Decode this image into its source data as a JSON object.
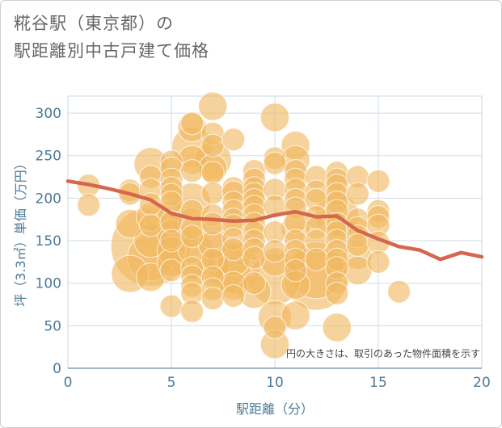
{
  "title_line1": "糀谷駅（東京都）の",
  "title_line2": "駅距離別中古戸建て価格",
  "chart_data": {
    "type": "scatter",
    "xlabel": "駅距離（分）",
    "ylabel": "坪（3.3㎡）単価（万円）",
    "xlim": [
      0,
      20
    ],
    "ylim": [
      0,
      320
    ],
    "xticks": [
      0,
      5,
      10,
      15,
      20
    ],
    "yticks": [
      0,
      50,
      100,
      150,
      200,
      250,
      300
    ],
    "grid": true,
    "annotation": "円の大きさは、取引のあった物件面積を示す",
    "colors": {
      "bubble": "#f0b860",
      "line": "#d4674e",
      "grid": "#cfdde8",
      "axis": "#4d7a98"
    },
    "bubbles": [
      {
        "x": 1,
        "y": 215,
        "s": 2
      },
      {
        "x": 1,
        "y": 192,
        "s": 2
      },
      {
        "x": 3,
        "y": 209,
        "s": 2
      },
      {
        "x": 3,
        "y": 205,
        "s": 2
      },
      {
        "x": 3,
        "y": 170,
        "s": 3
      },
      {
        "x": 3,
        "y": 111,
        "s": 5
      },
      {
        "x": 4,
        "y": 240,
        "s": 4
      },
      {
        "x": 4,
        "y": 225,
        "s": 2
      },
      {
        "x": 4,
        "y": 210,
        "s": 2
      },
      {
        "x": 4,
        "y": 193,
        "s": 2
      },
      {
        "x": 4,
        "y": 178,
        "s": 3
      },
      {
        "x": 4,
        "y": 168,
        "s": 2
      },
      {
        "x": 4,
        "y": 150,
        "s": 4
      },
      {
        "x": 4,
        "y": 143,
        "s": 25
      },
      {
        "x": 4,
        "y": 130,
        "s": 8
      },
      {
        "x": 4,
        "y": 107,
        "s": 3
      },
      {
        "x": 5,
        "y": 243,
        "s": 2
      },
      {
        "x": 5,
        "y": 235,
        "s": 2
      },
      {
        "x": 5,
        "y": 222,
        "s": 2
      },
      {
        "x": 5,
        "y": 212,
        "s": 2
      },
      {
        "x": 5,
        "y": 204,
        "s": 2
      },
      {
        "x": 5,
        "y": 195,
        "s": 2
      },
      {
        "x": 5,
        "y": 180,
        "s": 3
      },
      {
        "x": 5,
        "y": 172,
        "s": 2
      },
      {
        "x": 5,
        "y": 158,
        "s": 3
      },
      {
        "x": 5,
        "y": 150,
        "s": 2
      },
      {
        "x": 5,
        "y": 138,
        "s": 3
      },
      {
        "x": 5,
        "y": 124,
        "s": 3
      },
      {
        "x": 5,
        "y": 115,
        "s": 2
      },
      {
        "x": 5,
        "y": 73,
        "s": 2
      },
      {
        "x": 6,
        "y": 288,
        "s": 2
      },
      {
        "x": 6,
        "y": 283,
        "s": 3
      },
      {
        "x": 6,
        "y": 260,
        "s": 6
      },
      {
        "x": 6,
        "y": 245,
        "s": 3
      },
      {
        "x": 6,
        "y": 232,
        "s": 2
      },
      {
        "x": 6,
        "y": 196,
        "s": 5
      },
      {
        "x": 6,
        "y": 185,
        "s": 2
      },
      {
        "x": 6,
        "y": 172,
        "s": 3
      },
      {
        "x": 6,
        "y": 165,
        "s": 2
      },
      {
        "x": 6,
        "y": 155,
        "s": 2
      },
      {
        "x": 6,
        "y": 140,
        "s": 3
      },
      {
        "x": 6,
        "y": 133,
        "s": 8
      },
      {
        "x": 6,
        "y": 118,
        "s": 2
      },
      {
        "x": 6,
        "y": 108,
        "s": 2
      },
      {
        "x": 6,
        "y": 97,
        "s": 2
      },
      {
        "x": 6,
        "y": 88,
        "s": 2
      },
      {
        "x": 6,
        "y": 67,
        "s": 2
      },
      {
        "x": 7,
        "y": 308,
        "s": 3
      },
      {
        "x": 7,
        "y": 276,
        "s": 2
      },
      {
        "x": 7,
        "y": 262,
        "s": 2
      },
      {
        "x": 7,
        "y": 245,
        "s": 5
      },
      {
        "x": 7,
        "y": 235,
        "s": 3
      },
      {
        "x": 7,
        "y": 230,
        "s": 2
      },
      {
        "x": 7,
        "y": 206,
        "s": 2
      },
      {
        "x": 7,
        "y": 180,
        "s": 2
      },
      {
        "x": 7,
        "y": 170,
        "s": 2
      },
      {
        "x": 7,
        "y": 157,
        "s": 3
      },
      {
        "x": 7,
        "y": 145,
        "s": 3
      },
      {
        "x": 7,
        "y": 128,
        "s": 2
      },
      {
        "x": 7,
        "y": 120,
        "s": 4
      },
      {
        "x": 7,
        "y": 107,
        "s": 2
      },
      {
        "x": 7,
        "y": 93,
        "s": 2
      },
      {
        "x": 7,
        "y": 82,
        "s": 2
      },
      {
        "x": 8,
        "y": 269,
        "s": 2
      },
      {
        "x": 8,
        "y": 212,
        "s": 2
      },
      {
        "x": 8,
        "y": 207,
        "s": 2
      },
      {
        "x": 8,
        "y": 195,
        "s": 2
      },
      {
        "x": 8,
        "y": 185,
        "s": 2
      },
      {
        "x": 8,
        "y": 175,
        "s": 2
      },
      {
        "x": 8,
        "y": 168,
        "s": 2
      },
      {
        "x": 8,
        "y": 152,
        "s": 2
      },
      {
        "x": 8,
        "y": 140,
        "s": 2
      },
      {
        "x": 8,
        "y": 128,
        "s": 4
      },
      {
        "x": 8,
        "y": 118,
        "s": 10
      },
      {
        "x": 8,
        "y": 110,
        "s": 5
      },
      {
        "x": 8,
        "y": 97,
        "s": 3
      },
      {
        "x": 8,
        "y": 85,
        "s": 2
      },
      {
        "x": 9,
        "y": 232,
        "s": 2
      },
      {
        "x": 9,
        "y": 222,
        "s": 2
      },
      {
        "x": 9,
        "y": 212,
        "s": 2
      },
      {
        "x": 9,
        "y": 205,
        "s": 2
      },
      {
        "x": 9,
        "y": 198,
        "s": 2
      },
      {
        "x": 9,
        "y": 190,
        "s": 2
      },
      {
        "x": 9,
        "y": 180,
        "s": 2
      },
      {
        "x": 9,
        "y": 170,
        "s": 2
      },
      {
        "x": 9,
        "y": 160,
        "s": 2
      },
      {
        "x": 9,
        "y": 150,
        "s": 2
      },
      {
        "x": 9,
        "y": 140,
        "s": 2
      },
      {
        "x": 9,
        "y": 130,
        "s": 2
      },
      {
        "x": 9,
        "y": 100,
        "s": 2
      },
      {
        "x": 9,
        "y": 90,
        "s": 4
      },
      {
        "x": 10,
        "y": 295,
        "s": 3
      },
      {
        "x": 10,
        "y": 247,
        "s": 2
      },
      {
        "x": 10,
        "y": 241,
        "s": 2
      },
      {
        "x": 10,
        "y": 210,
        "s": 2
      },
      {
        "x": 10,
        "y": 190,
        "s": 2
      },
      {
        "x": 10,
        "y": 160,
        "s": 2
      },
      {
        "x": 10,
        "y": 138,
        "s": 2
      },
      {
        "x": 10,
        "y": 125,
        "s": 3
      },
      {
        "x": 10,
        "y": 105,
        "s": 10
      },
      {
        "x": 10,
        "y": 60,
        "s": 4
      },
      {
        "x": 10,
        "y": 48,
        "s": 2
      },
      {
        "x": 10,
        "y": 28,
        "s": 3
      },
      {
        "x": 11,
        "y": 262,
        "s": 3
      },
      {
        "x": 11,
        "y": 245,
        "s": 3
      },
      {
        "x": 11,
        "y": 232,
        "s": 2
      },
      {
        "x": 11,
        "y": 222,
        "s": 2
      },
      {
        "x": 11,
        "y": 210,
        "s": 2
      },
      {
        "x": 11,
        "y": 198,
        "s": 2
      },
      {
        "x": 11,
        "y": 188,
        "s": 2
      },
      {
        "x": 11,
        "y": 172,
        "s": 2
      },
      {
        "x": 11,
        "y": 165,
        "s": 3
      },
      {
        "x": 11,
        "y": 150,
        "s": 2
      },
      {
        "x": 11,
        "y": 138,
        "s": 2
      },
      {
        "x": 11,
        "y": 128,
        "s": 2
      },
      {
        "x": 11,
        "y": 115,
        "s": 2
      },
      {
        "x": 11,
        "y": 98,
        "s": 3
      },
      {
        "x": 11,
        "y": 62,
        "s": 3
      },
      {
        "x": 12,
        "y": 225,
        "s": 2
      },
      {
        "x": 12,
        "y": 208,
        "s": 2
      },
      {
        "x": 12,
        "y": 198,
        "s": 2
      },
      {
        "x": 12,
        "y": 178,
        "s": 2
      },
      {
        "x": 12,
        "y": 165,
        "s": 2
      },
      {
        "x": 12,
        "y": 150,
        "s": 2
      },
      {
        "x": 12,
        "y": 128,
        "s": 2
      },
      {
        "x": 12,
        "y": 115,
        "s": 12
      },
      {
        "x": 12,
        "y": 105,
        "s": 15
      },
      {
        "x": 13,
        "y": 230,
        "s": 2
      },
      {
        "x": 13,
        "y": 222,
        "s": 2
      },
      {
        "x": 13,
        "y": 215,
        "s": 2
      },
      {
        "x": 13,
        "y": 205,
        "s": 2
      },
      {
        "x": 13,
        "y": 195,
        "s": 2
      },
      {
        "x": 13,
        "y": 185,
        "s": 2
      },
      {
        "x": 13,
        "y": 180,
        "s": 7
      },
      {
        "x": 13,
        "y": 170,
        "s": 2
      },
      {
        "x": 13,
        "y": 160,
        "s": 2
      },
      {
        "x": 13,
        "y": 150,
        "s": 2
      },
      {
        "x": 13,
        "y": 138,
        "s": 2
      },
      {
        "x": 13,
        "y": 128,
        "s": 2
      },
      {
        "x": 13,
        "y": 118,
        "s": 2
      },
      {
        "x": 13,
        "y": 100,
        "s": 2
      },
      {
        "x": 13,
        "y": 88,
        "s": 2
      },
      {
        "x": 13,
        "y": 48,
        "s": 3
      },
      {
        "x": 14,
        "y": 225,
        "s": 2
      },
      {
        "x": 14,
        "y": 205,
        "s": 2
      },
      {
        "x": 14,
        "y": 175,
        "s": 2
      },
      {
        "x": 14,
        "y": 165,
        "s": 2
      },
      {
        "x": 14,
        "y": 155,
        "s": 2
      },
      {
        "x": 14,
        "y": 145,
        "s": 2
      },
      {
        "x": 14,
        "y": 133,
        "s": 3
      },
      {
        "x": 14,
        "y": 115,
        "s": 3
      },
      {
        "x": 15,
        "y": 220,
        "s": 2
      },
      {
        "x": 15,
        "y": 185,
        "s": 2
      },
      {
        "x": 15,
        "y": 178,
        "s": 2
      },
      {
        "x": 15,
        "y": 168,
        "s": 2
      },
      {
        "x": 15,
        "y": 148,
        "s": 2
      },
      {
        "x": 15,
        "y": 125,
        "s": 2
      },
      {
        "x": 16,
        "y": 90,
        "s": 2
      }
    ],
    "trend": [
      {
        "x": 0,
        "y": 220
      },
      {
        "x": 1,
        "y": 216
      },
      {
        "x": 2,
        "y": 211
      },
      {
        "x": 3,
        "y": 205
      },
      {
        "x": 4,
        "y": 198
      },
      {
        "x": 5,
        "y": 182
      },
      {
        "x": 6,
        "y": 176
      },
      {
        "x": 7,
        "y": 175
      },
      {
        "x": 8,
        "y": 173
      },
      {
        "x": 9,
        "y": 174
      },
      {
        "x": 10,
        "y": 180
      },
      {
        "x": 11,
        "y": 184
      },
      {
        "x": 12,
        "y": 178
      },
      {
        "x": 13,
        "y": 179
      },
      {
        "x": 14,
        "y": 162
      },
      {
        "x": 15,
        "y": 152
      },
      {
        "x": 16,
        "y": 143
      },
      {
        "x": 17,
        "y": 139
      },
      {
        "x": 18,
        "y": 128
      },
      {
        "x": 19,
        "y": 136
      },
      {
        "x": 20,
        "y": 131
      }
    ]
  }
}
